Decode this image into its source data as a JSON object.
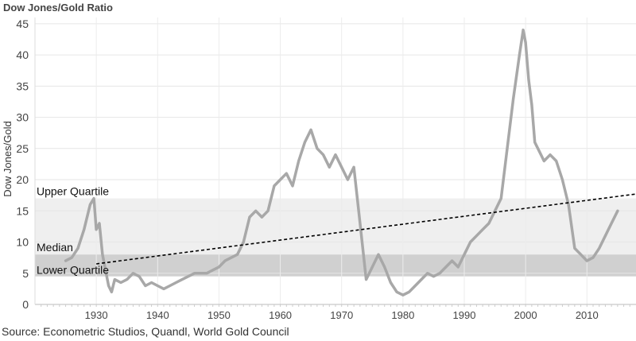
{
  "chart_data": {
    "type": "line",
    "title": "Dow Jones/Gold Ratio",
    "ylabel": "Dow Jones/Gold",
    "xlabel": "",
    "source": "Source: Econometric Studios, Quandl, World Gold Council",
    "xlim": [
      1920,
      2018
    ],
    "ylim": [
      0,
      46
    ],
    "x_ticks": [
      1930,
      1940,
      1950,
      1960,
      1970,
      1980,
      1990,
      2000,
      2010
    ],
    "y_ticks": [
      0,
      5,
      10,
      15,
      20,
      25,
      30,
      35,
      40,
      45
    ],
    "grid": true,
    "bands": [
      {
        "name": "Upper Quartile",
        "from": 8.0,
        "to": 17.0,
        "color": "#efefef"
      },
      {
        "name": "Lower Quartile",
        "from": 4.5,
        "to": 8.0,
        "color": "#d0d0d0"
      }
    ],
    "band_labels": [
      "Upper Quartile",
      "Median",
      "Lower Quartile"
    ],
    "trendline": {
      "x": [
        1930,
        2018
      ],
      "y": [
        6.5,
        17.7
      ],
      "style": "dashed",
      "color": "#000000"
    },
    "series": [
      {
        "color": "#a8a8a8",
        "x": [
          1925,
          1926,
          1927,
          1928,
          1929,
          1929.6,
          1930,
          1930.5,
          1931,
          1932,
          1932.5,
          1933,
          1934,
          1935,
          1936,
          1937,
          1938,
          1939,
          1940,
          1941,
          1942,
          1943,
          1944,
          1945,
          1946,
          1947,
          1948,
          1949,
          1950,
          1951,
          1952,
          1953,
          1954,
          1955,
          1956,
          1957,
          1958,
          1959,
          1960,
          1961,
          1962,
          1963,
          1964,
          1965,
          1966,
          1967,
          1968,
          1969,
          1970,
          1971,
          1972,
          1973,
          1974,
          1975,
          1976,
          1977,
          1978,
          1979,
          1980,
          1981,
          1982,
          1983,
          1984,
          1985,
          1986,
          1987,
          1988,
          1989,
          1990,
          1991,
          1992,
          1993,
          1994,
          1995,
          1996,
          1997,
          1998,
          1999,
          1999.6,
          2000,
          2000.5,
          2001,
          2001.5,
          2002,
          2003,
          2004,
          2005,
          2006,
          2007,
          2008,
          2009,
          2010,
          2011,
          2012,
          2013,
          2014,
          2015
        ],
        "y": [
          7,
          7.5,
          9,
          12,
          16,
          17,
          12,
          13,
          8,
          3,
          2,
          4,
          3.5,
          4,
          5,
          4.5,
          3,
          3.5,
          3,
          2.5,
          3,
          3.5,
          4,
          4.5,
          5,
          5,
          5,
          5.5,
          6,
          7,
          7.5,
          8,
          10,
          14,
          15,
          14,
          15,
          19,
          20,
          21,
          19,
          23,
          26,
          28,
          25,
          24,
          22,
          24,
          22,
          20,
          22,
          13,
          4,
          6,
          8,
          6,
          3.5,
          2,
          1.5,
          2,
          3,
          4,
          5,
          4.5,
          5,
          6,
          7,
          6,
          8,
          10,
          11,
          12,
          13,
          15,
          17,
          25,
          33,
          40,
          44,
          42,
          36,
          32,
          26,
          25,
          23,
          24,
          23,
          20,
          16,
          9,
          8,
          7,
          7.5,
          9,
          11,
          13,
          15
        ]
      }
    ]
  }
}
